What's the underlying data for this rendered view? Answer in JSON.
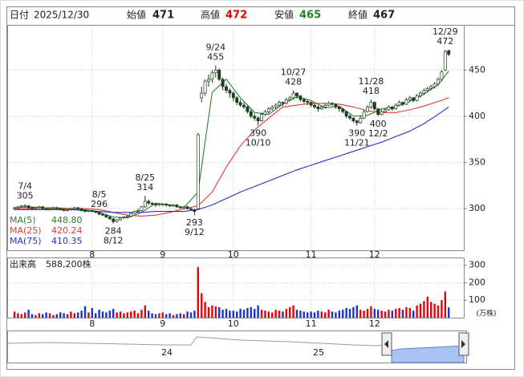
{
  "header": {
    "date_label": "日付",
    "date": "2025/12/30",
    "open_label": "始値",
    "open": 471,
    "high_label": "高値",
    "high": 472,
    "low_label": "安値",
    "low": 465,
    "close_label": "終値",
    "close": 467
  },
  "chart_data": [
    {
      "type": "candlestick",
      "up_color": "#ffffff",
      "down_color": "#1e3d1e",
      "grid": true,
      "ylim": [
        255,
        498
      ],
      "yticks": [
        300,
        350,
        400,
        450
      ],
      "xticks": [
        {
          "value": 22,
          "label": "8"
        },
        {
          "value": 42,
          "label": "9"
        },
        {
          "value": 62,
          "label": "10"
        },
        {
          "value": 84,
          "label": "11"
        },
        {
          "value": 102,
          "label": "12"
        }
      ],
      "ohlc": [
        [
          300,
          302,
          299,
          301
        ],
        [
          301,
          303,
          300,
          302
        ],
        [
          302,
          304,
          301,
          303
        ],
        [
          303,
          305,
          301,
          303
        ],
        [
          303,
          304,
          300,
          301
        ],
        [
          301,
          302,
          299,
          300
        ],
        [
          300,
          302,
          299,
          301
        ],
        [
          301,
          303,
          300,
          302
        ],
        [
          302,
          303,
          299,
          300
        ],
        [
          300,
          301,
          298,
          299
        ],
        [
          299,
          301,
          298,
          300
        ],
        [
          300,
          302,
          299,
          301
        ],
        [
          301,
          302,
          299,
          300
        ],
        [
          300,
          301,
          298,
          299
        ],
        [
          299,
          300,
          297,
          298
        ],
        [
          298,
          300,
          297,
          299
        ],
        [
          299,
          301,
          298,
          300
        ],
        [
          300,
          302,
          299,
          301
        ],
        [
          301,
          302,
          299,
          300
        ],
        [
          300,
          301,
          297,
          298
        ],
        [
          298,
          299,
          296,
          297
        ],
        [
          297,
          299,
          296,
          298
        ],
        [
          298,
          299,
          296,
          297
        ],
        [
          297,
          298,
          295,
          296
        ],
        [
          296,
          296,
          293,
          294
        ],
        [
          294,
          295,
          292,
          293
        ],
        [
          293,
          294,
          290,
          291
        ],
        [
          291,
          292,
          288,
          289
        ],
        [
          289,
          290,
          284,
          286
        ],
        [
          286,
          289,
          285,
          288
        ],
        [
          288,
          291,
          287,
          290
        ],
        [
          290,
          292,
          289,
          291
        ],
        [
          291,
          293,
          290,
          292
        ],
        [
          292,
          296,
          291,
          295
        ],
        [
          295,
          298,
          294,
          297
        ],
        [
          297,
          300,
          296,
          298
        ],
        [
          298,
          303,
          297,
          302
        ],
        [
          302,
          314,
          301,
          308
        ],
        [
          308,
          310,
          304,
          306
        ],
        [
          306,
          307,
          303,
          305
        ],
        [
          305,
          306,
          302,
          304
        ],
        [
          304,
          306,
          303,
          305
        ],
        [
          305,
          306,
          303,
          305
        ],
        [
          305,
          306,
          302,
          304
        ],
        [
          304,
          305,
          302,
          303
        ],
        [
          303,
          305,
          302,
          304
        ],
        [
          304,
          305,
          301,
          302
        ],
        [
          302,
          303,
          300,
          301
        ],
        [
          301,
          303,
          300,
          302
        ],
        [
          302,
          303,
          299,
          300
        ],
        [
          300,
          301,
          298,
          299
        ],
        [
          299,
          300,
          293,
          297
        ],
        [
          300,
          382,
          299,
          380
        ],
        [
          420,
          432,
          415,
          425
        ],
        [
          425,
          440,
          422,
          438
        ],
        [
          438,
          445,
          432,
          440
        ],
        [
          440,
          450,
          436,
          447
        ],
        [
          447,
          455,
          442,
          450
        ],
        [
          450,
          452,
          438,
          440
        ],
        [
          440,
          442,
          428,
          432
        ],
        [
          432,
          435,
          425,
          428
        ],
        [
          428,
          430,
          420,
          425
        ],
        [
          425,
          427,
          416,
          420
        ],
        [
          420,
          422,
          412,
          415
        ],
        [
          415,
          418,
          410,
          412
        ],
        [
          412,
          415,
          408,
          410
        ],
        [
          410,
          412,
          403,
          405
        ],
        [
          405,
          408,
          398,
          400
        ],
        [
          400,
          403,
          395,
          398
        ],
        [
          398,
          400,
          390,
          395
        ],
        [
          395,
          404,
          394,
          402
        ],
        [
          402,
          407,
          400,
          405
        ],
        [
          405,
          410,
          403,
          408
        ],
        [
          408,
          412,
          406,
          410
        ],
        [
          410,
          414,
          408,
          412
        ],
        [
          412,
          417,
          410,
          415
        ],
        [
          415,
          416,
          411,
          414
        ],
        [
          414,
          420,
          413,
          418
        ],
        [
          418,
          422,
          416,
          420
        ],
        [
          420,
          428,
          418,
          425
        ],
        [
          425,
          426,
          419,
          422
        ],
        [
          422,
          423,
          416,
          418
        ],
        [
          418,
          420,
          414,
          416
        ],
        [
          416,
          418,
          412,
          415
        ],
        [
          415,
          416,
          410,
          412
        ],
        [
          412,
          414,
          408,
          410
        ],
        [
          410,
          412,
          405,
          408
        ],
        [
          408,
          412,
          407,
          410
        ],
        [
          410,
          414,
          409,
          412
        ],
        [
          412,
          416,
          411,
          414
        ],
        [
          414,
          415,
          411,
          413
        ],
        [
          413,
          414,
          408,
          410
        ],
        [
          410,
          411,
          405,
          408
        ],
        [
          408,
          409,
          403,
          405
        ],
        [
          405,
          406,
          398,
          400
        ],
        [
          400,
          402,
          396,
          398
        ],
        [
          398,
          399,
          393,
          395
        ],
        [
          395,
          396,
          390,
          393
        ],
        [
          393,
          400,
          392,
          398
        ],
        [
          398,
          407,
          397,
          405
        ],
        [
          405,
          412,
          404,
          410
        ],
        [
          410,
          418,
          408,
          415
        ],
        [
          415,
          416,
          406,
          408
        ],
        [
          408,
          409,
          400,
          402
        ],
        [
          402,
          407,
          401,
          405
        ],
        [
          405,
          409,
          404,
          407
        ],
        [
          407,
          412,
          406,
          410
        ],
        [
          410,
          411,
          406,
          408
        ],
        [
          408,
          414,
          407,
          412
        ],
        [
          412,
          417,
          411,
          415
        ],
        [
          415,
          416,
          411,
          413
        ],
        [
          413,
          420,
          412,
          418
        ],
        [
          418,
          422,
          416,
          420
        ],
        [
          420,
          421,
          415,
          417
        ],
        [
          417,
          424,
          416,
          422
        ],
        [
          422,
          427,
          420,
          425
        ],
        [
          425,
          430,
          423,
          428
        ],
        [
          428,
          432,
          426,
          430
        ],
        [
          430,
          434,
          428,
          432
        ],
        [
          432,
          437,
          430,
          435
        ],
        [
          435,
          442,
          433,
          440
        ],
        [
          440,
          450,
          438,
          448
        ],
        [
          450,
          472,
          449,
          470
        ],
        [
          471,
          472,
          465,
          467
        ]
      ],
      "annotations": [
        {
          "date": "7/4",
          "value": 305,
          "at": "high",
          "candle": 3
        },
        {
          "date": "8/5",
          "value": 296,
          "at": "high",
          "candle": 24
        },
        {
          "date": "8/12",
          "value": 284,
          "at": "low",
          "candle": 28
        },
        {
          "date": "8/25",
          "value": 314,
          "at": "high",
          "candle": 37
        },
        {
          "date": "9/12",
          "value": 293,
          "at": "low",
          "candle": 51
        },
        {
          "date": "9/24",
          "value": 455,
          "at": "high",
          "candle": 57
        },
        {
          "date": "10/10",
          "value": 390,
          "at": "low",
          "candle": 69
        },
        {
          "date": "10/27",
          "value": 428,
          "at": "high",
          "candle": 79
        },
        {
          "date": "11/21",
          "value": 390,
          "at": "low",
          "candle": 97
        },
        {
          "date": "11/28",
          "value": 418,
          "at": "high",
          "candle": 101
        },
        {
          "date": "12/2",
          "value": 400,
          "at": "low",
          "candle": 103
        },
        {
          "date": "12/29",
          "value": 472,
          "at": "high",
          "candle": 122
        }
      ],
      "series": [
        {
          "name": "MA(5)",
          "color": "#2e7d32",
          "legend_value": {
            "value": 448.8,
            "label": "448.80"
          },
          "x": [
            0,
            4,
            8,
            12,
            16,
            20,
            24,
            28,
            32,
            36,
            40,
            44,
            48,
            52,
            56,
            60,
            64,
            68,
            72,
            76,
            80,
            84,
            88,
            92,
            96,
            100,
            104,
            108,
            112,
            116,
            120,
            123
          ],
          "values": [
            301,
            302,
            301,
            300,
            299,
            299,
            296,
            291,
            290,
            296,
            306,
            304,
            301,
            318,
            426,
            440,
            420,
            404,
            402,
            413,
            421,
            417,
            409,
            411,
            400,
            401,
            408,
            410,
            416,
            424,
            434,
            449
          ]
        },
        {
          "name": "MA(25)",
          "color": "#e53935",
          "legend_value": {
            "value": 420.24,
            "label": "420.24"
          },
          "x": [
            0,
            4,
            8,
            12,
            16,
            20,
            24,
            28,
            32,
            36,
            40,
            44,
            48,
            52,
            56,
            60,
            64,
            68,
            72,
            76,
            80,
            84,
            88,
            92,
            96,
            100,
            104,
            108,
            112,
            116,
            120,
            123
          ],
          "values": [
            300,
            300,
            301,
            301,
            300,
            300,
            299,
            296,
            293,
            292,
            293,
            296,
            300,
            303,
            318,
            345,
            368,
            385,
            398,
            410,
            412,
            414,
            414,
            413,
            410,
            406,
            404,
            404,
            407,
            411,
            416,
            420
          ]
        },
        {
          "name": "MA(75)",
          "color": "#2233cc",
          "legend_value": {
            "value": 410.35,
            "label": "410.35"
          },
          "x": [
            0,
            4,
            8,
            12,
            16,
            20,
            24,
            28,
            32,
            36,
            40,
            44,
            48,
            52,
            56,
            60,
            64,
            68,
            72,
            76,
            80,
            84,
            88,
            92,
            96,
            100,
            104,
            108,
            112,
            116,
            120,
            123
          ],
          "values": [
            299,
            299,
            299,
            299,
            299,
            298,
            297,
            296,
            296,
            296,
            297,
            297,
            297,
            299,
            304,
            311,
            318,
            324,
            330,
            336,
            342,
            347,
            352,
            357,
            362,
            367,
            372,
            378,
            384,
            392,
            402,
            410
          ]
        }
      ]
    },
    {
      "type": "volume",
      "title": "出来高",
      "latest": {
        "value": 588200,
        "label": "588,200株"
      },
      "unit": "(万株)",
      "up_color": "#e8000b",
      "down_color": "#1a33cc",
      "grid": true,
      "ylim": [
        0,
        340
      ],
      "yticks": [
        100,
        200,
        300
      ],
      "xticks": [
        {
          "value": 22,
          "label": "8"
        },
        {
          "value": 42,
          "label": "9"
        },
        {
          "value": 62,
          "label": "10"
        },
        {
          "value": 84,
          "label": "11"
        },
        {
          "value": 102,
          "label": "12"
        }
      ],
      "values": [
        35,
        25,
        20,
        30,
        45,
        20,
        15,
        25,
        20,
        30,
        25,
        15,
        20,
        30,
        25,
        20,
        35,
        25,
        30,
        40,
        65,
        30,
        55,
        25,
        45,
        35,
        30,
        40,
        50,
        30,
        35,
        25,
        30,
        35,
        40,
        25,
        45,
        70,
        40,
        25,
        20,
        25,
        30,
        20,
        25,
        15,
        20,
        25,
        20,
        35,
        30,
        40,
        290,
        140,
        90,
        60,
        70,
        65,
        60,
        45,
        50,
        40,
        40,
        35,
        50,
        45,
        55,
        60,
        50,
        70,
        45,
        40,
        35,
        30,
        45,
        40,
        35,
        50,
        60,
        70,
        45,
        40,
        35,
        30,
        35,
        30,
        40,
        35,
        30,
        45,
        35,
        30,
        40,
        45,
        55,
        50,
        60,
        70,
        45,
        40,
        50,
        65,
        50,
        45,
        40,
        35,
        45,
        40,
        50,
        55,
        45,
        60,
        55,
        40,
        70,
        80,
        95,
        120,
        90,
        80,
        70,
        100,
        150,
        58.82
      ]
    }
  ],
  "navigator": {
    "labels": [
      "24",
      "25"
    ]
  }
}
